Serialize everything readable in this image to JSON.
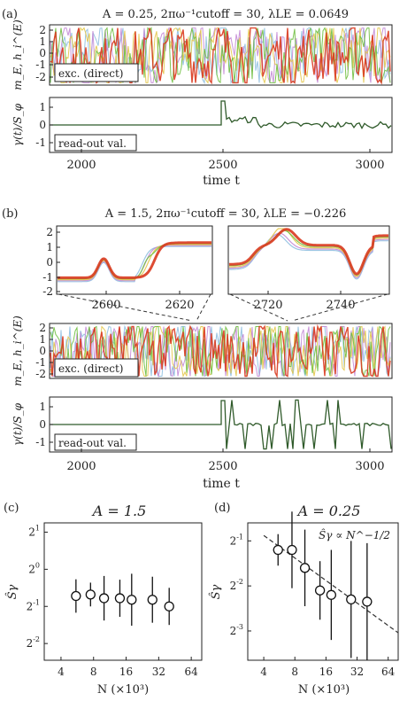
{
  "panels": {
    "a": {
      "tag": "(a)",
      "title": "A = 0.25, 2πω⁻¹cutoff = 30, λLE = 0.0649",
      "top_ylabel": "m_E, h_i^(E)",
      "top_legend": "exc. (direct)",
      "top_ticks": [
        "2",
        "1",
        "0",
        "-1",
        "-2"
      ],
      "bottom_ylabel": "γ(t)/S_φ",
      "bottom_legend": "read-out val.",
      "bottom_ticks": [
        "1",
        "0",
        "-1"
      ],
      "x_ticks": [
        "2000",
        "2500",
        "3000"
      ],
      "xlabel": "time  t"
    },
    "b": {
      "tag": "(b)",
      "title": "A = 1.5, 2πω⁻¹cutoff = 30, λLE = −0.226",
      "inset_left_ticks": [
        "2600",
        "2620"
      ],
      "inset_right_ticks": [
        "2720",
        "2740"
      ],
      "inset_yticks": [
        "2",
        "1",
        "0",
        "-1",
        "-2"
      ],
      "top_ylabel": "m_E, h_i^(E)",
      "top_legend": "exc. (direct)",
      "top_ticks": [
        "2",
        "1",
        "0",
        "-1",
        "-2"
      ],
      "bottom_ylabel": "γ(t)/S_φ",
      "bottom_legend": "read-out val.",
      "bottom_ticks": [
        "1",
        "0",
        "-1"
      ],
      "x_ticks": [
        "2000",
        "2500",
        "3000"
      ],
      "xlabel": "time  t"
    },
    "c": {
      "tag": "(c)",
      "title": "A = 1.5"
    },
    "d": {
      "tag": "(d)",
      "title": "A = 0.25",
      "annotation": "Ŝγ ∝ N^−1/2"
    }
  },
  "scatter_common": {
    "ylabel": "Ŝγ",
    "xlabel": "N  (×10³)",
    "x_ticks": [
      "4",
      "8",
      "16",
      "32",
      "64"
    ],
    "y_tick_base": "2"
  },
  "colors": {
    "red": "#d9381e",
    "green": "#6fbf3f",
    "blue": "#8fbfe0",
    "purple": "#c48bd6",
    "yellow": "#e3c74a",
    "readout": "#2f5a2a"
  },
  "chart_data": [
    {
      "type": "scatter",
      "title": "A = 1.5",
      "xlabel": "N (×10³)",
      "ylabel": "Ŝγ",
      "log_base_x": 2,
      "log_base_y": 2,
      "x": [
        5.5,
        7.5,
        10,
        14,
        18,
        28,
        40
      ],
      "y_log2": [
        -0.72,
        -0.68,
        -0.78,
        -0.78,
        -0.82,
        -0.82,
        -1.0
      ],
      "err_log2": [
        0.45,
        0.32,
        0.6,
        0.5,
        0.7,
        0.62,
        0.5
      ],
      "xlim": [
        2.8,
        80
      ],
      "ylim_log2": [
        -2.45,
        1.25
      ],
      "yticks_exp": [
        1,
        0,
        -1,
        -2
      ]
    },
    {
      "type": "scatter",
      "title": "A = 0.25",
      "xlabel": "N (×10³)",
      "ylabel": "Ŝγ",
      "log_base_x": 2,
      "log_base_y": 2,
      "x": [
        5.5,
        7.5,
        10,
        14,
        18,
        28,
        40
      ],
      "y_log2": [
        -1.2,
        -1.2,
        -1.6,
        -2.1,
        -2.2,
        -2.3,
        -2.35
      ],
      "err_log2": [
        0.35,
        0.85,
        0.85,
        0.65,
        1.0,
        1.3,
        1.3
      ],
      "guide": {
        "label": "Ŝγ ∝ N^−1/2",
        "y_log2_at_4": -0.88,
        "slope": -0.5
      },
      "xlim": [
        2.8,
        80
      ],
      "ylim_log2": [
        -3.65,
        -0.6
      ],
      "yticks_exp": [
        -1,
        -2,
        -3
      ]
    }
  ]
}
